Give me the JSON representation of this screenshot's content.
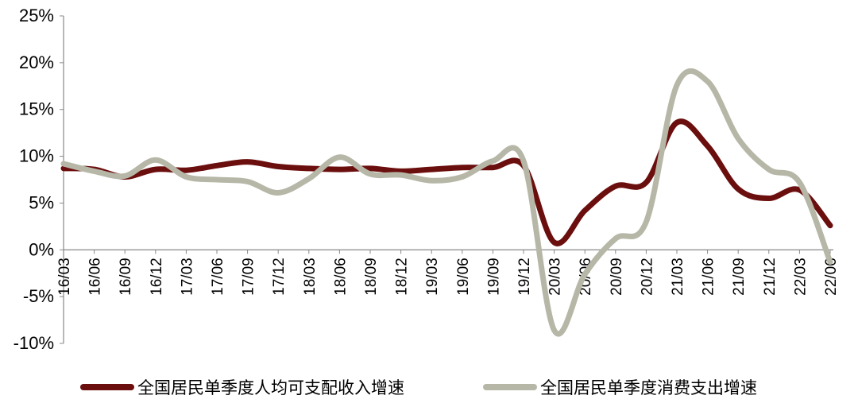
{
  "chart_data": {
    "type": "line",
    "categories": [
      "16/03",
      "16/06",
      "16/09",
      "16/12",
      "17/03",
      "17/06",
      "17/09",
      "17/12",
      "18/03",
      "18/06",
      "18/09",
      "18/12",
      "19/03",
      "19/06",
      "19/09",
      "19/12",
      "20/03",
      "20/06",
      "20/09",
      "20/12",
      "21/03",
      "21/06",
      "21/09",
      "21/12",
      "22/03",
      "22/06"
    ],
    "yticks": [
      "25%",
      "20%",
      "15%",
      "10%",
      "5%",
      "0%",
      "-5%",
      "-10%"
    ],
    "ylim": [
      -10,
      25
    ],
    "grid": false,
    "legend_position": "bottom",
    "series": [
      {
        "name": "全国居民单季度人均可支配收入增速",
        "color": "#6B0E0E",
        "values": [
          8.7,
          8.6,
          7.8,
          8.6,
          8.5,
          9.0,
          9.4,
          8.9,
          8.7,
          8.6,
          8.7,
          8.4,
          8.6,
          8.8,
          8.8,
          9.0,
          0.8,
          4.2,
          6.8,
          7.2,
          13.6,
          11.1,
          6.5,
          5.5,
          6.4,
          2.6
        ]
      },
      {
        "name": "全国居民单季度消费支出增速",
        "color": "#B7B7A8",
        "values": [
          9.2,
          8.4,
          7.9,
          9.6,
          7.8,
          7.5,
          7.3,
          6.1,
          7.6,
          9.9,
          8.1,
          8.0,
          7.4,
          7.8,
          9.5,
          9.5,
          -8.6,
          -2.6,
          1.2,
          3.0,
          17.6,
          18.0,
          11.9,
          8.6,
          7.2,
          -1.3
        ]
      }
    ]
  }
}
